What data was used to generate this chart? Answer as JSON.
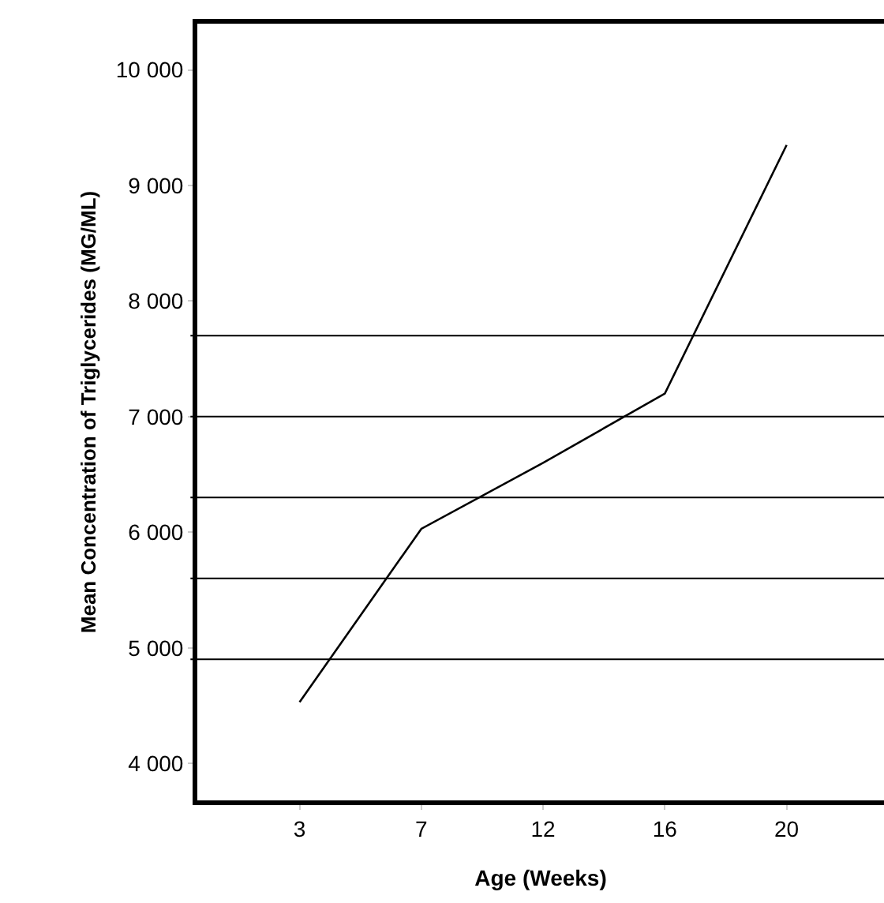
{
  "chart_data": {
    "type": "line",
    "xlabel": "Age (Weeks)",
    "ylabel": "Mean Concentration of Triglycerides (MG/ML)",
    "categories": [
      "3",
      "7",
      "12",
      "16",
      "20"
    ],
    "series": [
      {
        "color": "#000000",
        "values": [
          4530,
          6030,
          6600,
          7200,
          9350
        ]
      }
    ],
    "ylim": [
      3680,
      10400
    ],
    "yticks": [
      {
        "value": 4000,
        "label": "4 000"
      },
      {
        "value": 5000,
        "label": "5 000"
      },
      {
        "value": 6000,
        "label": "6 000"
      },
      {
        "value": 7000,
        "label": "7 000"
      },
      {
        "value": 8000,
        "label": "8 000"
      },
      {
        "value": 9000,
        "label": "9 000"
      },
      {
        "value": 10000,
        "label": "10 000"
      }
    ],
    "ref_lines": [
      {
        "axis": "y",
        "value": 4900,
        "color": "#000000"
      },
      {
        "axis": "y",
        "value": 5600,
        "color": "#000000"
      },
      {
        "axis": "y",
        "value": 6300,
        "color": "#000000"
      },
      {
        "axis": "y",
        "value": 7000,
        "color": "#000000"
      },
      {
        "axis": "y",
        "value": 7700,
        "color": "#000000"
      }
    ],
    "grid": false,
    "marker": "none",
    "line_style": "solid"
  }
}
